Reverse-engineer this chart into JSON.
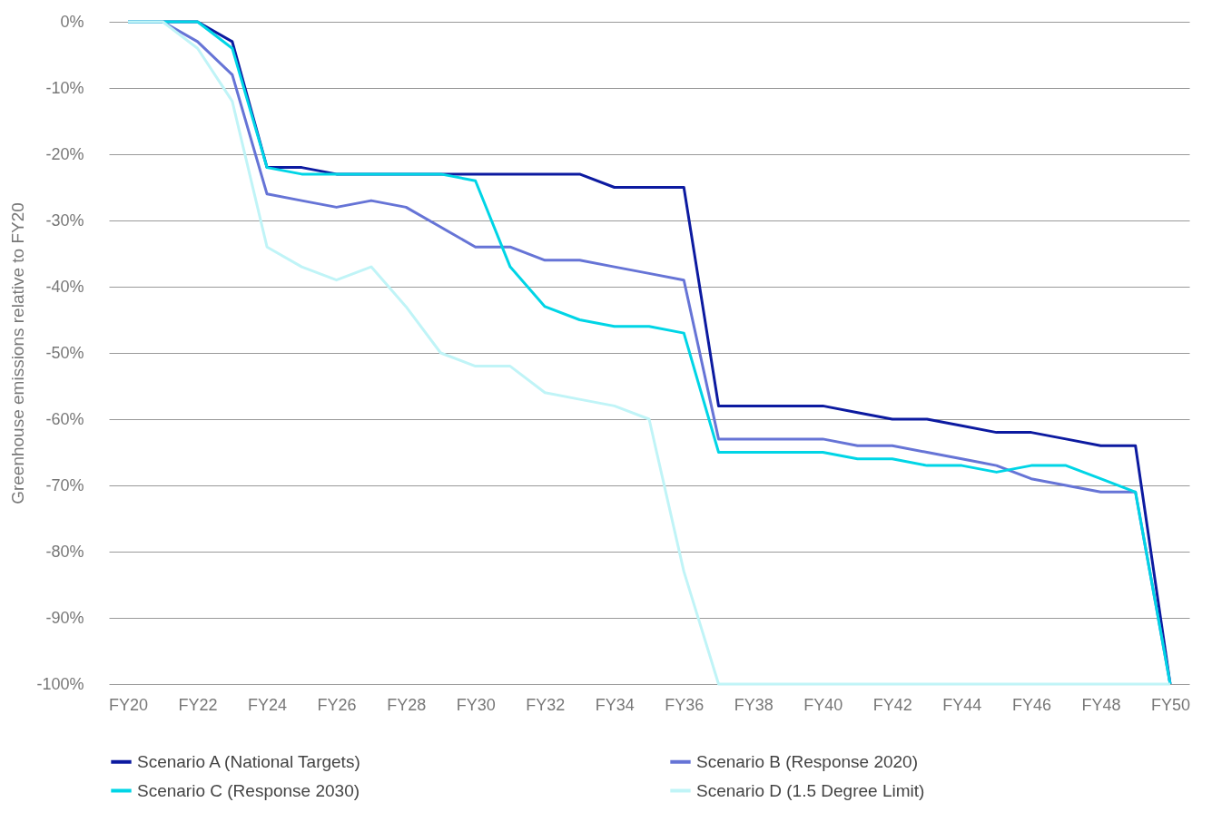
{
  "chart_data": {
    "type": "line",
    "ylabel": "Greenhouse emissions relative to FY20",
    "categories": [
      "FY20",
      null,
      "FY22",
      null,
      "FY24",
      null,
      "FY26",
      null,
      "FY28",
      null,
      "FY30",
      null,
      "FY32",
      null,
      "FY34",
      null,
      "FY36",
      null,
      "FY38",
      null,
      "FY40",
      null,
      "FY42",
      null,
      "FY44",
      null,
      "FY46",
      null,
      "FY48",
      null,
      "FY50"
    ],
    "series": [
      {
        "name": "Scenario A (National Targets)",
        "color": "#0c1aa0",
        "values": [
          0,
          0,
          0,
          -3,
          -22,
          -22,
          -23,
          -23,
          -23,
          -23,
          -23,
          -23,
          -23,
          -23,
          -25,
          -25,
          -25,
          -58,
          -58,
          -58,
          -58,
          -59,
          -60,
          -60,
          -61,
          -62,
          -62,
          -63,
          -64,
          -64,
          -100
        ]
      },
      {
        "name": "Scenario B (Response 2020)",
        "color": "#6674d6",
        "values": [
          0,
          0,
          -3,
          -8,
          -26,
          -27,
          -28,
          -27,
          -28,
          -31,
          -34,
          -34,
          -36,
          -36,
          -37,
          -38,
          -39,
          -63,
          -63,
          -63,
          -63,
          -64,
          -64,
          -65,
          -66,
          -67,
          -69,
          -70,
          -71,
          -71,
          -100
        ]
      },
      {
        "name": "Scenario C (Response 2030)",
        "color": "#00d5e6",
        "values": [
          0,
          0,
          0,
          -4,
          -22,
          -23,
          -23,
          -23,
          -23,
          -23,
          -24,
          -37,
          -43,
          -45,
          -46,
          -46,
          -47,
          -65,
          -65,
          -65,
          -65,
          -66,
          -66,
          -67,
          -67,
          -68,
          -67,
          -67,
          -69,
          -71,
          -100
        ]
      },
      {
        "name": "Scenario D (1.5 Degree Limit)",
        "color": "#c0f4f7",
        "values": [
          0,
          0,
          -4,
          -12,
          -34,
          -37,
          -39,
          -37,
          -43,
          -50,
          -52,
          -52,
          -56,
          -57,
          -58,
          -60,
          -83,
          -100,
          -100,
          -100,
          -100,
          -100,
          -100,
          -100,
          -100,
          -100,
          -100,
          -100,
          -100,
          -100,
          -100
        ]
      }
    ],
    "ylim": [
      -100,
      0
    ],
    "yticks": [
      {
        "value": 0,
        "label": "0%"
      },
      {
        "value": -10,
        "label": "-10%"
      },
      {
        "value": -20,
        "label": "-20%"
      },
      {
        "value": -30,
        "label": "-30%"
      },
      {
        "value": -40,
        "label": "-40%"
      },
      {
        "value": -50,
        "label": "-50%"
      },
      {
        "value": -60,
        "label": "-60%"
      },
      {
        "value": -70,
        "label": "-70%"
      },
      {
        "value": -80,
        "label": "-80%"
      },
      {
        "value": -90,
        "label": "-90%"
      },
      {
        "value": -100,
        "label": "-100%"
      }
    ],
    "grid": "y",
    "legend": "bottom",
    "marker": "none",
    "line_style": "solid"
  }
}
